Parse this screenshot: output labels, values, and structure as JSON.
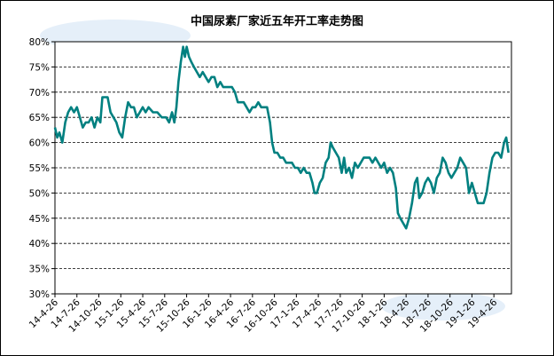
{
  "chart_data": {
    "type": "line",
    "title": "中国尿素厂家近五年开工率走势图",
    "xlabel": "",
    "ylabel": "",
    "ylim": [
      30,
      80
    ],
    "yticks": [
      "30%",
      "35%",
      "40%",
      "45%",
      "50%",
      "55%",
      "60%",
      "65%",
      "70%",
      "75%",
      "80%"
    ],
    "grid": "horizontal-dashed",
    "legend": "none",
    "line_color": "#008080",
    "categories": [
      "14-4-26",
      "14-7-26",
      "14-10-26",
      "15-1-26",
      "15-4-26",
      "15-7-26",
      "15-10-26",
      "16-1-26",
      "16-4-26",
      "16-7-26",
      "16-10-26",
      "17-1-26",
      "17-4-26",
      "17-7-26",
      "17-10-26",
      "18-1-26",
      "18-4-26",
      "18-7-26",
      "18-10-26",
      "19-1-26",
      "19-4-26"
    ],
    "series": [
      {
        "values": [
          {
            "x": 0,
            "y": 63
          },
          {
            "x": 0.08,
            "y": 61
          },
          {
            "x": 0.15,
            "y": 62
          },
          {
            "x": 0.25,
            "y": 60
          },
          {
            "x": 0.35,
            "y": 64
          },
          {
            "x": 0.45,
            "y": 66
          },
          {
            "x": 0.55,
            "y": 67
          },
          {
            "x": 0.65,
            "y": 66
          },
          {
            "x": 0.75,
            "y": 67
          },
          {
            "x": 0.85,
            "y": 65
          },
          {
            "x": 0.95,
            "y": 63
          },
          {
            "x": 1.05,
            "y": 64
          },
          {
            "x": 1.15,
            "y": 64
          },
          {
            "x": 1.25,
            "y": 65
          },
          {
            "x": 1.35,
            "y": 63
          },
          {
            "x": 1.45,
            "y": 65
          },
          {
            "x": 1.55,
            "y": 64
          },
          {
            "x": 1.62,
            "y": 69
          },
          {
            "x": 1.7,
            "y": 69
          },
          {
            "x": 1.8,
            "y": 69
          },
          {
            "x": 1.9,
            "y": 66
          },
          {
            "x": 2.0,
            "y": 65
          },
          {
            "x": 2.1,
            "y": 64
          },
          {
            "x": 2.2,
            "y": 62
          },
          {
            "x": 2.3,
            "y": 61
          },
          {
            "x": 2.4,
            "y": 65
          },
          {
            "x": 2.5,
            "y": 68
          },
          {
            "x": 2.6,
            "y": 67
          },
          {
            "x": 2.7,
            "y": 67
          },
          {
            "x": 2.8,
            "y": 65
          },
          {
            "x": 2.9,
            "y": 66
          },
          {
            "x": 3.0,
            "y": 67
          },
          {
            "x": 3.1,
            "y": 66
          },
          {
            "x": 3.2,
            "y": 67
          },
          {
            "x": 3.35,
            "y": 66
          },
          {
            "x": 3.5,
            "y": 66
          },
          {
            "x": 3.65,
            "y": 65
          },
          {
            "x": 3.8,
            "y": 65
          },
          {
            "x": 3.9,
            "y": 64
          },
          {
            "x": 4.0,
            "y": 66
          },
          {
            "x": 4.08,
            "y": 64
          },
          {
            "x": 4.15,
            "y": 67
          },
          {
            "x": 4.22,
            "y": 72
          },
          {
            "x": 4.3,
            "y": 76
          },
          {
            "x": 4.38,
            "y": 79
          },
          {
            "x": 4.44,
            "y": 77
          },
          {
            "x": 4.5,
            "y": 79
          },
          {
            "x": 4.58,
            "y": 77
          },
          {
            "x": 4.66,
            "y": 76
          },
          {
            "x": 4.75,
            "y": 75
          },
          {
            "x": 4.85,
            "y": 74
          },
          {
            "x": 4.95,
            "y": 73
          },
          {
            "x": 5.05,
            "y": 74
          },
          {
            "x": 5.15,
            "y": 73
          },
          {
            "x": 5.25,
            "y": 72
          },
          {
            "x": 5.35,
            "y": 73
          },
          {
            "x": 5.45,
            "y": 73
          },
          {
            "x": 5.55,
            "y": 71
          },
          {
            "x": 5.65,
            "y": 72
          },
          {
            "x": 5.75,
            "y": 71
          },
          {
            "x": 5.85,
            "y": 71
          },
          {
            "x": 5.95,
            "y": 71
          },
          {
            "x": 6.05,
            "y": 71
          },
          {
            "x": 6.15,
            "y": 70
          },
          {
            "x": 6.25,
            "y": 68
          },
          {
            "x": 6.35,
            "y": 68
          },
          {
            "x": 6.45,
            "y": 68
          },
          {
            "x": 6.55,
            "y": 67
          },
          {
            "x": 6.65,
            "y": 66
          },
          {
            "x": 6.75,
            "y": 67
          },
          {
            "x": 6.85,
            "y": 67
          },
          {
            "x": 6.95,
            "y": 68
          },
          {
            "x": 7.05,
            "y": 67
          },
          {
            "x": 7.15,
            "y": 67
          },
          {
            "x": 7.25,
            "y": 67
          },
          {
            "x": 7.35,
            "y": 64
          },
          {
            "x": 7.42,
            "y": 60
          },
          {
            "x": 7.5,
            "y": 58
          },
          {
            "x": 7.6,
            "y": 58
          },
          {
            "x": 7.7,
            "y": 57
          },
          {
            "x": 7.8,
            "y": 57
          },
          {
            "x": 7.9,
            "y": 56
          },
          {
            "x": 8.0,
            "y": 56
          },
          {
            "x": 8.1,
            "y": 56
          },
          {
            "x": 8.2,
            "y": 55
          },
          {
            "x": 8.3,
            "y": 55
          },
          {
            "x": 8.4,
            "y": 54
          },
          {
            "x": 8.5,
            "y": 55
          },
          {
            "x": 8.6,
            "y": 54
          },
          {
            "x": 8.7,
            "y": 54
          },
          {
            "x": 8.8,
            "y": 52
          },
          {
            "x": 8.87,
            "y": 50
          },
          {
            "x": 8.95,
            "y": 50
          },
          {
            "x": 9.05,
            "y": 52
          },
          {
            "x": 9.15,
            "y": 53
          },
          {
            "x": 9.25,
            "y": 56
          },
          {
            "x": 9.35,
            "y": 57
          },
          {
            "x": 9.42,
            "y": 60
          },
          {
            "x": 9.5,
            "y": 59
          },
          {
            "x": 9.6,
            "y": 58
          },
          {
            "x": 9.7,
            "y": 57
          },
          {
            "x": 9.8,
            "y": 54
          },
          {
            "x": 9.88,
            "y": 57
          },
          {
            "x": 9.95,
            "y": 54
          },
          {
            "x": 10.05,
            "y": 55
          },
          {
            "x": 10.15,
            "y": 53
          },
          {
            "x": 10.25,
            "y": 56
          },
          {
            "x": 10.35,
            "y": 55
          },
          {
            "x": 10.45,
            "y": 56
          },
          {
            "x": 10.55,
            "y": 57
          },
          {
            "x": 10.65,
            "y": 57
          },
          {
            "x": 10.75,
            "y": 57
          },
          {
            "x": 10.85,
            "y": 56
          },
          {
            "x": 10.95,
            "y": 57
          },
          {
            "x": 11.05,
            "y": 56
          },
          {
            "x": 11.15,
            "y": 55
          },
          {
            "x": 11.25,
            "y": 56
          },
          {
            "x": 11.35,
            "y": 54
          },
          {
            "x": 11.45,
            "y": 55
          },
          {
            "x": 11.55,
            "y": 54
          },
          {
            "x": 11.65,
            "y": 51
          },
          {
            "x": 11.72,
            "y": 46
          },
          {
            "x": 11.8,
            "y": 45
          },
          {
            "x": 11.9,
            "y": 44
          },
          {
            "x": 12.0,
            "y": 43
          },
          {
            "x": 12.1,
            "y": 45
          },
          {
            "x": 12.2,
            "y": 48
          },
          {
            "x": 12.3,
            "y": 52
          },
          {
            "x": 12.38,
            "y": 53
          },
          {
            "x": 12.45,
            "y": 49
          },
          {
            "x": 12.55,
            "y": 50
          },
          {
            "x": 12.65,
            "y": 52
          },
          {
            "x": 12.75,
            "y": 53
          },
          {
            "x": 12.85,
            "y": 52
          },
          {
            "x": 12.95,
            "y": 50
          },
          {
            "x": 13.05,
            "y": 53
          },
          {
            "x": 13.15,
            "y": 54
          },
          {
            "x": 13.25,
            "y": 57
          },
          {
            "x": 13.35,
            "y": 56
          },
          {
            "x": 13.45,
            "y": 54
          },
          {
            "x": 13.55,
            "y": 53
          },
          {
            "x": 13.65,
            "y": 54
          },
          {
            "x": 13.75,
            "y": 55
          },
          {
            "x": 13.85,
            "y": 57
          },
          {
            "x": 13.95,
            "y": 56
          },
          {
            "x": 14.05,
            "y": 55
          },
          {
            "x": 14.15,
            "y": 50
          },
          {
            "x": 14.25,
            "y": 52
          },
          {
            "x": 14.35,
            "y": 50
          },
          {
            "x": 14.45,
            "y": 48
          },
          {
            "x": 14.55,
            "y": 48
          },
          {
            "x": 14.65,
            "y": 48
          },
          {
            "x": 14.75,
            "y": 50
          },
          {
            "x": 14.85,
            "y": 54
          },
          {
            "x": 14.95,
            "y": 57
          },
          {
            "x": 15.05,
            "y": 58
          },
          {
            "x": 15.15,
            "y": 58
          },
          {
            "x": 15.25,
            "y": 57
          },
          {
            "x": 15.35,
            "y": 60
          },
          {
            "x": 15.42,
            "y": 61
          },
          {
            "x": 15.5,
            "y": 58
          }
        ]
      }
    ]
  }
}
